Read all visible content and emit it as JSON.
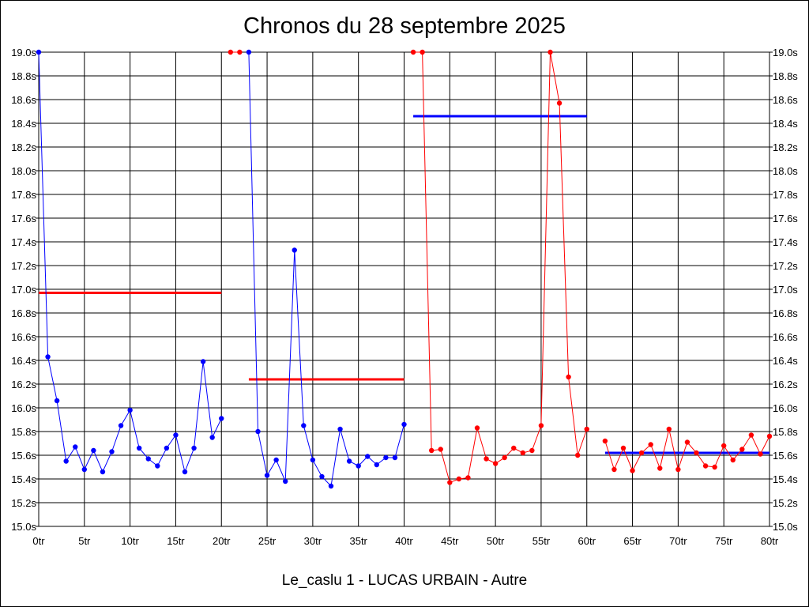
{
  "chart_data": {
    "type": "line",
    "title": "Chronos du 28 septembre 2025",
    "subtitle": "Le_caslu 1 - LUCAS URBAIN - Autre",
    "xlabel": "",
    "ylabel": "",
    "xlim": [
      0,
      80
    ],
    "ylim": [
      15.0,
      19.0
    ],
    "grid": true,
    "x_ticks": [
      "0tr",
      "5tr",
      "10tr",
      "15tr",
      "20tr",
      "25tr",
      "30tr",
      "35tr",
      "40tr",
      "45tr",
      "50tr",
      "55tr",
      "60tr",
      "65tr",
      "70tr",
      "75tr",
      "80tr"
    ],
    "y_ticks": [
      "15.0s",
      "15.2s",
      "15.4s",
      "15.6s",
      "15.8s",
      "16.0s",
      "16.2s",
      "16.4s",
      "16.6s",
      "16.8s",
      "17.0s",
      "17.2s",
      "17.4s",
      "17.6s",
      "17.8s",
      "18.0s",
      "18.2s",
      "18.4s",
      "18.6s",
      "18.8s",
      "19.0s"
    ],
    "series": [
      {
        "color": "#0000ff",
        "points": [
          [
            0,
            19.0
          ],
          [
            1,
            16.43
          ],
          [
            2,
            16.06
          ],
          [
            3,
            15.55
          ],
          [
            4,
            15.67
          ],
          [
            5,
            15.48
          ],
          [
            6,
            15.64
          ],
          [
            7,
            15.46
          ],
          [
            8,
            15.63
          ],
          [
            9,
            15.85
          ],
          [
            10,
            15.98
          ],
          [
            11,
            15.66
          ],
          [
            12,
            15.57
          ],
          [
            13,
            15.51
          ],
          [
            14,
            15.66
          ],
          [
            15,
            15.77
          ],
          [
            16,
            15.46
          ],
          [
            17,
            15.66
          ],
          [
            18,
            16.39
          ],
          [
            19,
            15.75
          ],
          [
            20,
            15.91
          ]
        ]
      },
      {
        "color": "#ff0000",
        "points": [
          [
            21,
            19.0
          ],
          [
            22,
            19.0
          ]
        ]
      },
      {
        "color": "#0000ff",
        "points": [
          [
            23,
            19.0
          ],
          [
            24,
            15.8
          ],
          [
            25,
            15.43
          ],
          [
            26,
            15.56
          ],
          [
            27,
            15.38
          ],
          [
            28,
            17.33
          ],
          [
            29,
            15.85
          ],
          [
            30,
            15.56
          ],
          [
            31,
            15.42
          ],
          [
            32,
            15.34
          ],
          [
            33,
            15.82
          ],
          [
            34,
            15.55
          ],
          [
            35,
            15.51
          ],
          [
            36,
            15.59
          ],
          [
            37,
            15.52
          ],
          [
            38,
            15.58
          ],
          [
            39,
            15.58
          ],
          [
            40,
            15.86
          ]
        ]
      },
      {
        "color": "#ff0000",
        "points": [
          [
            41,
            19.0
          ],
          [
            42,
            19.0
          ],
          [
            43,
            15.64
          ],
          [
            44,
            15.65
          ],
          [
            45,
            15.37
          ],
          [
            46,
            15.4
          ],
          [
            47,
            15.41
          ],
          [
            48,
            15.83
          ],
          [
            49,
            15.57
          ],
          [
            50,
            15.53
          ],
          [
            51,
            15.58
          ],
          [
            52,
            15.66
          ],
          [
            53,
            15.62
          ],
          [
            54,
            15.64
          ],
          [
            55,
            15.85
          ],
          [
            56,
            19.0
          ],
          [
            57,
            18.57
          ],
          [
            58,
            16.26
          ],
          [
            59,
            15.6
          ],
          [
            60,
            15.82
          ]
        ]
      },
      {
        "color": "#ff0000",
        "points": [
          [
            62,
            15.72
          ],
          [
            63,
            15.48
          ],
          [
            64,
            15.66
          ],
          [
            65,
            15.47
          ],
          [
            66,
            15.62
          ],
          [
            67,
            15.69
          ],
          [
            68,
            15.49
          ],
          [
            69,
            15.82
          ],
          [
            70,
            15.48
          ],
          [
            71,
            15.71
          ],
          [
            72,
            15.62
          ],
          [
            73,
            15.51
          ],
          [
            74,
            15.5
          ],
          [
            75,
            15.68
          ],
          [
            76,
            15.56
          ],
          [
            77,
            15.65
          ],
          [
            78,
            15.77
          ],
          [
            79,
            15.61
          ],
          [
            80,
            15.76
          ]
        ]
      }
    ],
    "averages": [
      {
        "x_start": 0,
        "x_end": 20,
        "value": 16.97,
        "color": "#ff0000"
      },
      {
        "x_start": 23,
        "x_end": 40,
        "value": 16.24,
        "color": "#ff0000"
      },
      {
        "x_start": 41,
        "x_end": 60,
        "value": 18.46,
        "color": "#0000ff"
      },
      {
        "x_start": 62,
        "x_end": 80,
        "value": 15.62,
        "color": "#0000ff"
      }
    ]
  }
}
